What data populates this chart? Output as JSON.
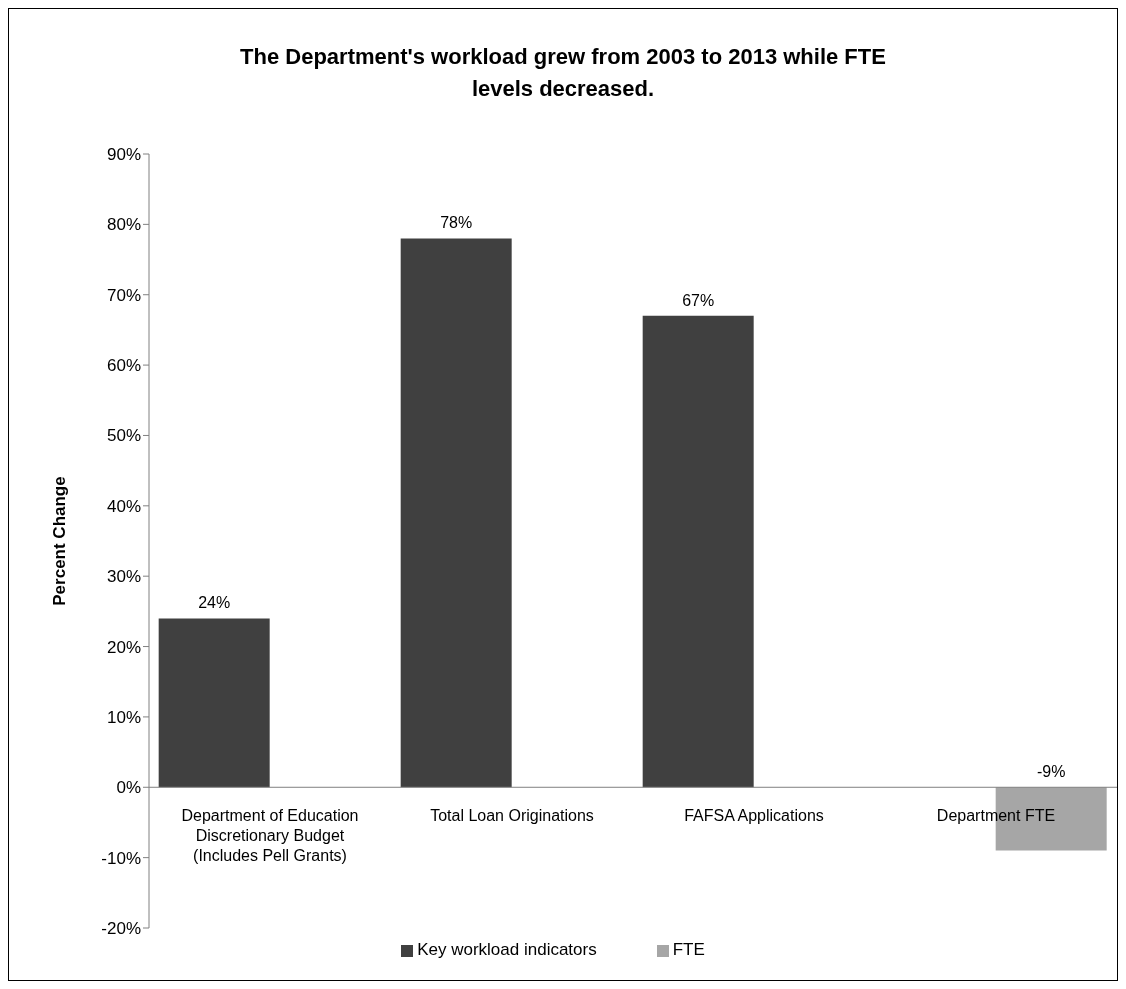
{
  "chart_data": {
    "type": "bar",
    "title": "The Department's workload grew from 2003 to 2013 while FTE levels decreased.",
    "ylabel": "Percent Change",
    "categories": [
      "Department of Education Discretionary Budget (Includes Pell Grants)",
      "Total Loan Originations",
      "FAFSA Applications",
      "Department FTE"
    ],
    "series": [
      {
        "name": "Key workload indicators",
        "color": "#404040",
        "values": [
          24,
          78,
          67,
          null
        ],
        "value_labels": [
          "24%",
          "78%",
          "67%",
          null
        ]
      },
      {
        "name": "FTE",
        "color": "#a6a6a6",
        "values": [
          null,
          null,
          null,
          -9
        ],
        "value_labels": [
          null,
          null,
          null,
          "-9%"
        ]
      }
    ],
    "ylim": [
      -20,
      90
    ],
    "yticks": [
      {
        "value": -20,
        "label": "-20%"
      },
      {
        "value": -10,
        "label": "-10%"
      },
      {
        "value": 0,
        "label": "0%"
      },
      {
        "value": 10,
        "label": "10%"
      },
      {
        "value": 20,
        "label": "20%"
      },
      {
        "value": 30,
        "label": "30%"
      },
      {
        "value": 40,
        "label": "40%"
      },
      {
        "value": 50,
        "label": "50%"
      },
      {
        "value": 60,
        "label": "60%"
      },
      {
        "value": 70,
        "label": "70%"
      },
      {
        "value": 80,
        "label": "80%"
      },
      {
        "value": 90,
        "label": "90%"
      }
    ],
    "grid": false,
    "legend": "bottom"
  }
}
